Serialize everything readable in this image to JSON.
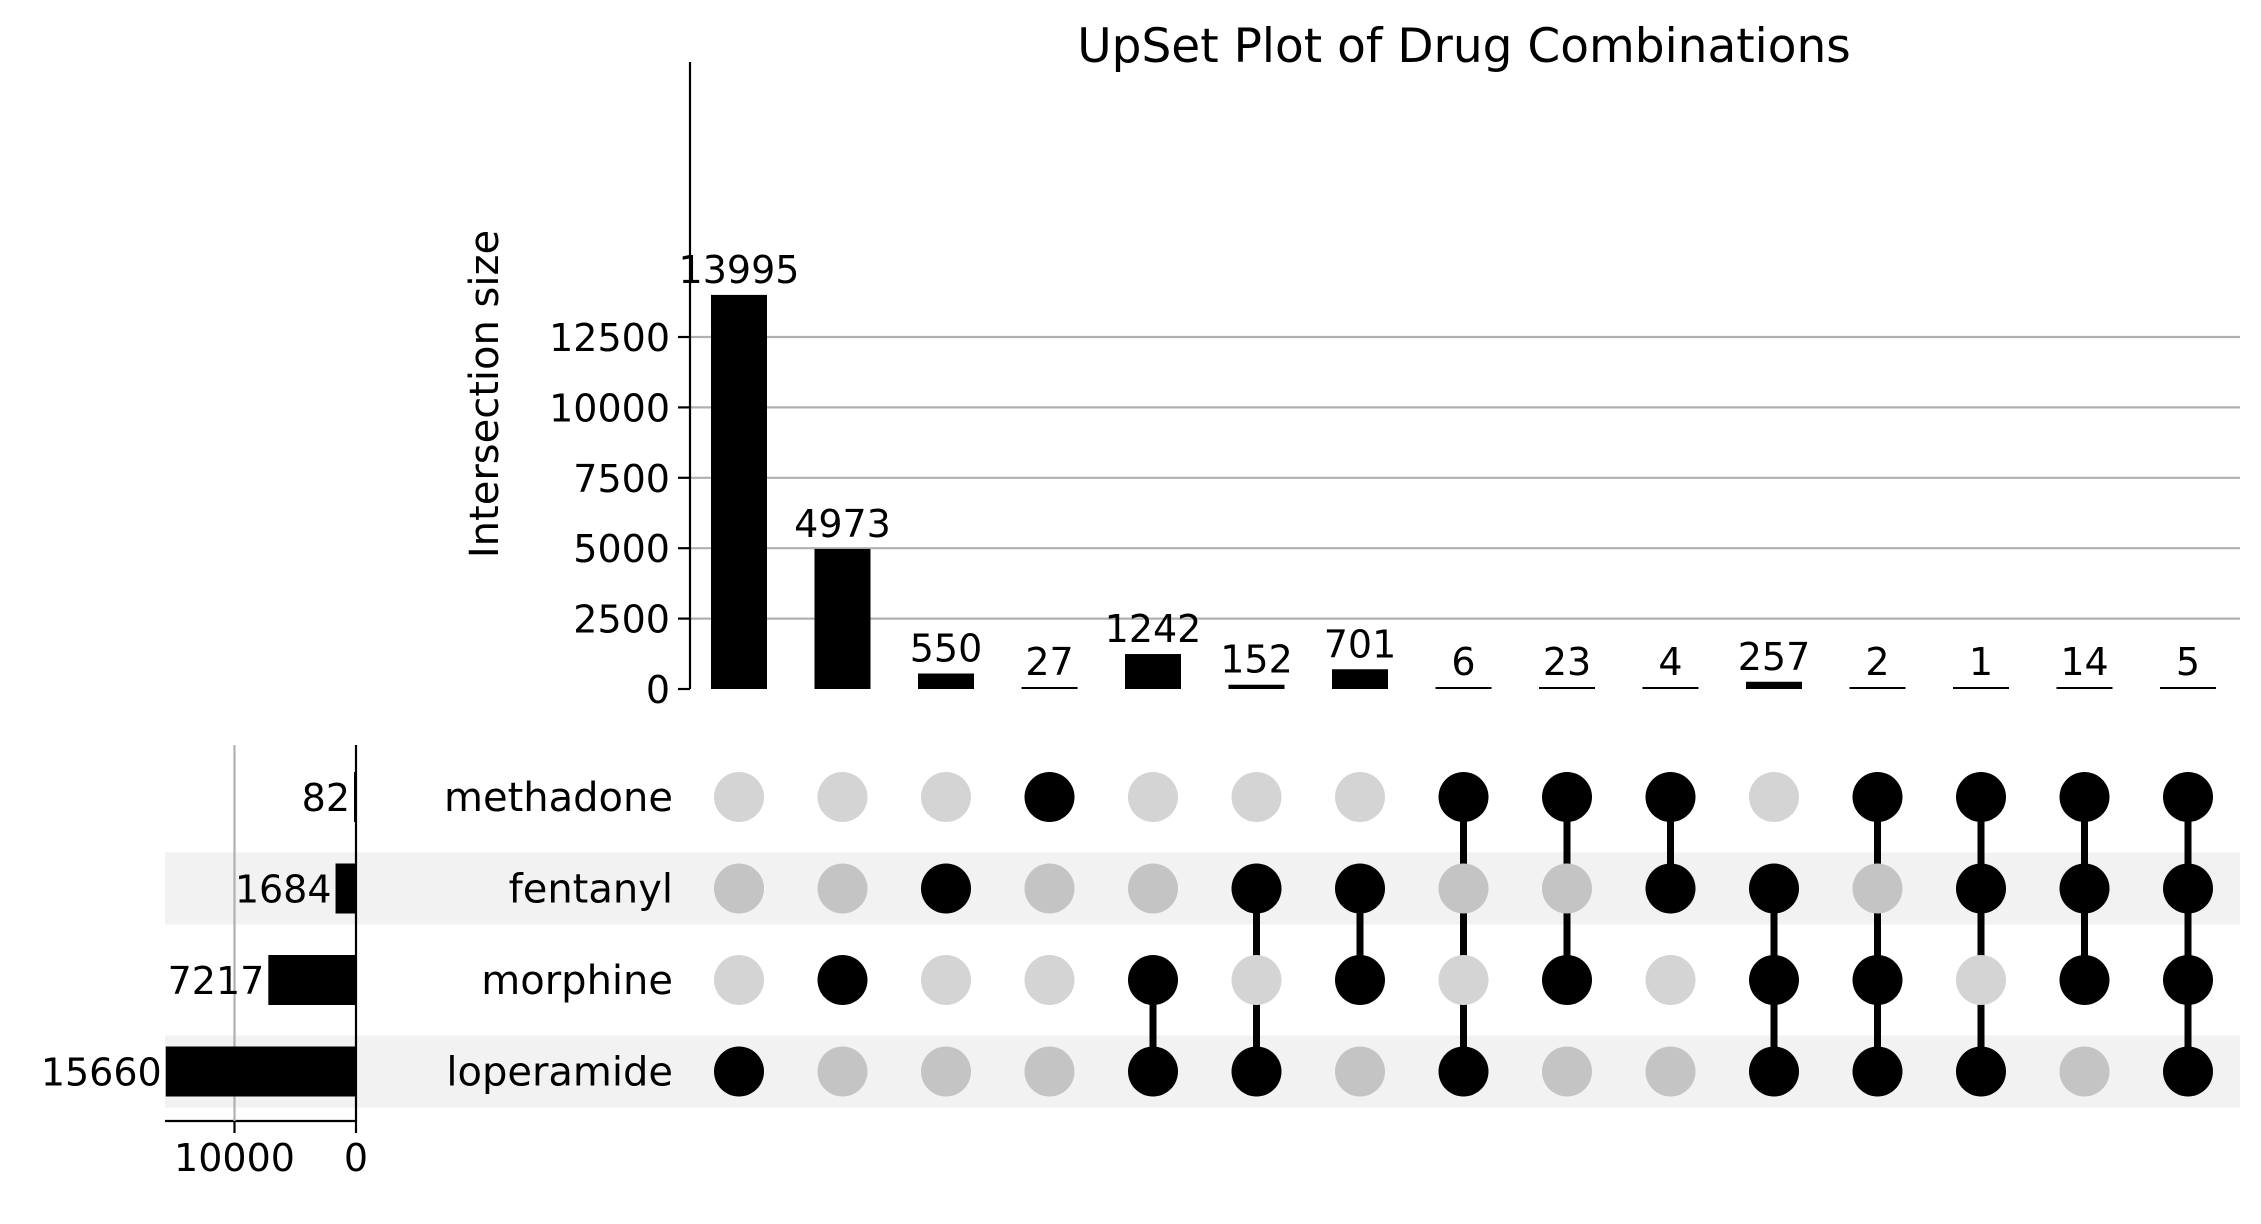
{
  "chart_data": {
    "type": "upset",
    "title": "UpSet Plot of Drug Combinations",
    "ylabel": "Intersection size",
    "ylim": [
      0,
      14100
    ],
    "y_ticks": [
      0,
      2500,
      5000,
      7500,
      10000,
      12500
    ],
    "sets": [
      "methadone",
      "fentanyl",
      "morphine",
      "loperamide"
    ],
    "set_sizes": [
      82,
      1684,
      7217,
      15660
    ],
    "set_size_ticks": [
      10000,
      0
    ],
    "intersections": [
      {
        "members": [
          "loperamide"
        ],
        "size": 13995
      },
      {
        "members": [
          "morphine"
        ],
        "size": 4973
      },
      {
        "members": [
          "fentanyl"
        ],
        "size": 550
      },
      {
        "members": [
          "methadone"
        ],
        "size": 27
      },
      {
        "members": [
          "morphine",
          "loperamide"
        ],
        "size": 1242
      },
      {
        "members": [
          "fentanyl",
          "loperamide"
        ],
        "size": 152
      },
      {
        "members": [
          "fentanyl",
          "morphine"
        ],
        "size": 701
      },
      {
        "members": [
          "methadone",
          "loperamide"
        ],
        "size": 6
      },
      {
        "members": [
          "methadone",
          "morphine"
        ],
        "size": 23
      },
      {
        "members": [
          "methadone",
          "fentanyl"
        ],
        "size": 4
      },
      {
        "members": [
          "fentanyl",
          "morphine",
          "loperamide"
        ],
        "size": 257
      },
      {
        "members": [
          "methadone",
          "morphine",
          "loperamide"
        ],
        "size": 2
      },
      {
        "members": [
          "methadone",
          "fentanyl",
          "loperamide"
        ],
        "size": 1
      },
      {
        "members": [
          "methadone",
          "fentanyl",
          "morphine"
        ],
        "size": 14
      },
      {
        "members": [
          "methadone",
          "fentanyl",
          "morphine",
          "loperamide"
        ],
        "size": 5
      }
    ],
    "grid": true,
    "colors": {
      "bar": "#000000",
      "active_dot": "#000000",
      "inactive_dot_light": "#d4d4d4",
      "inactive_dot_shaded": "#c4c4c4",
      "row_shade": "#f2f2f2",
      "grid": "#b0b0b0"
    }
  }
}
